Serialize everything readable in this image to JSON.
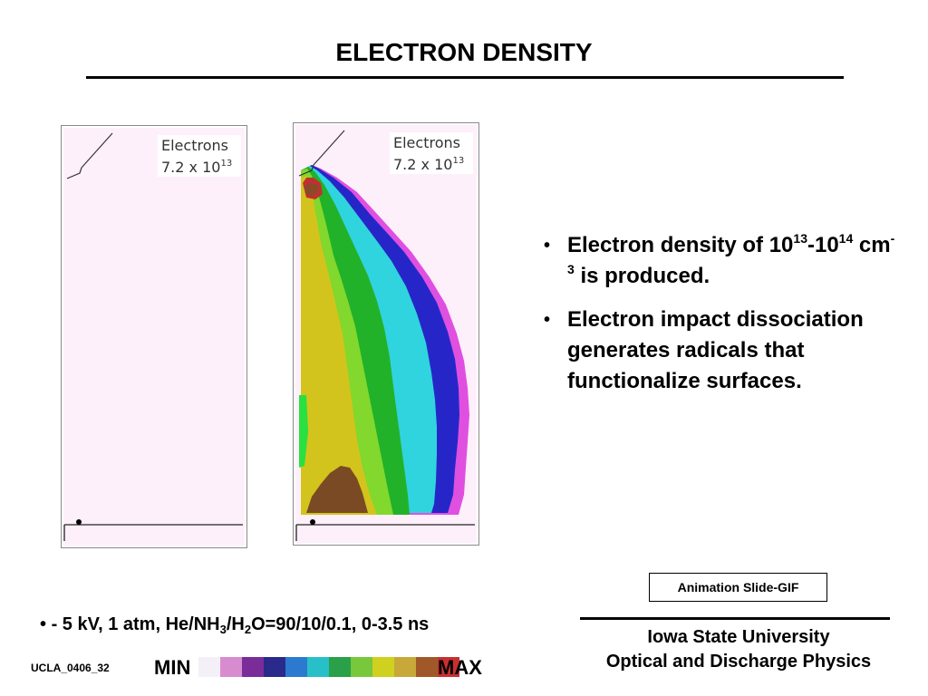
{
  "slide": {
    "title": "ELECTRON DENSITY",
    "panels": [
      {
        "label_line1": "Electrons",
        "label_mantissa": "7.2 x 10",
        "label_exp": "13",
        "state": "initial"
      },
      {
        "label_line1": "Electrons",
        "label_mantissa": "7.2 x 10",
        "label_exp": "13",
        "state": "developed"
      }
    ],
    "bullets": {
      "b1": {
        "t1": "Electron density of 10",
        "s1": "13",
        "t2": "-10",
        "s2": "14",
        "t3": " cm",
        "s3": "-3",
        "t4": " is produced."
      },
      "b2": {
        "text": "Electron impact dissociation generates radicals that functionalize surfaces."
      }
    },
    "animation_label": "Animation Slide-GIF",
    "conditions": {
      "c1": "- 5 kV, 1 atm,  He/NH",
      "s1": "3",
      "c2": "/H",
      "s2": "2",
      "c3": "O=90/10/0.1, 0-3.5 ns"
    },
    "institution": {
      "line1": "Iowa State University",
      "line2": "Optical and Discharge Physics"
    },
    "slide_id": "UCLA_0406_32",
    "scale": {
      "min_label": "MIN",
      "max_label": "MAX",
      "colors": [
        "#f4f0f8",
        "#d88cd0",
        "#7a2c98",
        "#2a2a8a",
        "#2c7ad0",
        "#28c0c8",
        "#2aa048",
        "#78c83c",
        "#d0d020",
        "#c8a838",
        "#a05828",
        "#c83030"
      ]
    }
  }
}
